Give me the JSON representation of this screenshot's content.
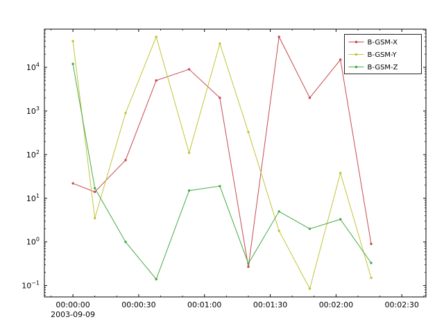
{
  "chart_data": {
    "type": "line",
    "title": "",
    "xlabel": "",
    "ylabel": "",
    "grid": false,
    "x_axis": {
      "tick_seconds": [
        0,
        30,
        60,
        90,
        120,
        150
      ],
      "tick_labels": [
        "00:00:00",
        "00:00:30",
        "00:01:00",
        "00:01:30",
        "00:02:00",
        "00:02:30"
      ],
      "date_label": "2003-09-09",
      "xlim_seconds": [
        -13,
        161
      ],
      "minor_tick_step_seconds": 10
    },
    "y_axis": {
      "scale": "log",
      "major_tick_exponents": [
        -1,
        0,
        1,
        2,
        3,
        4
      ],
      "tick_labels": [
        "10^-1",
        "10^0",
        "10^1",
        "10^2",
        "10^3",
        "10^4"
      ],
      "ylim": [
        0.055,
        75000
      ]
    },
    "x_seconds": [
      0,
      10,
      24,
      38,
      53,
      67,
      80,
      94,
      108,
      122,
      136
    ],
    "series": [
      {
        "name": "B-GSM-X",
        "color": "#c8484c",
        "marker": "point",
        "values": [
          22,
          14,
          75,
          5000,
          9000,
          2000,
          0.27,
          50000,
          2000,
          15000,
          0.9
        ]
      },
      {
        "name": "B-GSM-Y",
        "color": "#c3c337",
        "marker": "point",
        "values": [
          40000,
          3.5,
          900,
          50000,
          110,
          35000,
          330,
          1.8,
          0.085,
          38,
          0.15
        ]
      },
      {
        "name": "B-GSM-Z",
        "color": "#44aa44",
        "marker": "point",
        "values": [
          12000,
          17,
          1.0,
          0.14,
          15,
          19,
          0.32,
          5,
          2,
          3.3,
          0.33
        ]
      }
    ],
    "legend": {
      "position": "top-right",
      "entries": [
        "B-GSM-X",
        "B-GSM-Y",
        "B-GSM-Z"
      ]
    }
  },
  "colors": {
    "axis": "#000000",
    "background": "#ffffff",
    "legend_border": "#222222"
  }
}
